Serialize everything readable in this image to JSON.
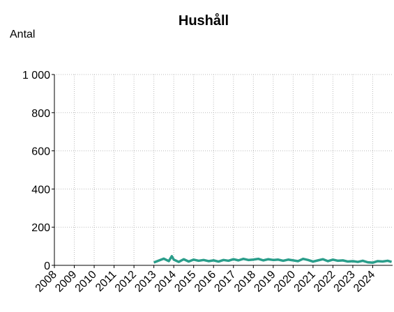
{
  "chart_data": {
    "type": "line",
    "title": "Hushåll",
    "y_label": "Antal",
    "x": [
      2013.0,
      2013.25,
      2013.5,
      2013.75,
      2013.9,
      2014.0,
      2014.25,
      2014.5,
      2014.75,
      2015.0,
      2015.25,
      2015.5,
      2015.75,
      2016.0,
      2016.25,
      2016.5,
      2016.75,
      2017.0,
      2017.25,
      2017.5,
      2017.75,
      2018.0,
      2018.25,
      2018.5,
      2018.75,
      2019.0,
      2019.25,
      2019.5,
      2019.75,
      2020.0,
      2020.25,
      2020.5,
      2020.75,
      2021.0,
      2021.25,
      2021.5,
      2021.75,
      2022.0,
      2022.25,
      2022.5,
      2022.75,
      2023.0,
      2023.25,
      2023.5,
      2023.75,
      2024.0,
      2024.25,
      2024.5,
      2024.75,
      2024.95
    ],
    "series": [
      {
        "name": "Hushåll",
        "color": "#2a9d8a",
        "values": [
          15,
          25,
          35,
          22,
          48,
          30,
          18,
          32,
          20,
          30,
          24,
          28,
          22,
          26,
          20,
          28,
          24,
          32,
          26,
          34,
          28,
          30,
          34,
          26,
          32,
          28,
          30,
          24,
          30,
          26,
          22,
          34,
          28,
          20,
          26,
          32,
          22,
          30,
          24,
          26,
          20,
          22,
          18,
          24,
          16,
          14,
          22,
          20,
          24,
          18
        ]
      }
    ],
    "xlim": [
      2008,
      2025
    ],
    "xticks": [
      2008,
      2009,
      2010,
      2011,
      2012,
      2013,
      2014,
      2015,
      2016,
      2017,
      2018,
      2019,
      2020,
      2021,
      2022,
      2023,
      2024
    ],
    "ylim": [
      0,
      1000
    ],
    "yticks": [
      0,
      200,
      400,
      600,
      800,
      {
        "value": 1000,
        "label": "1 000"
      }
    ],
    "grid": true
  }
}
